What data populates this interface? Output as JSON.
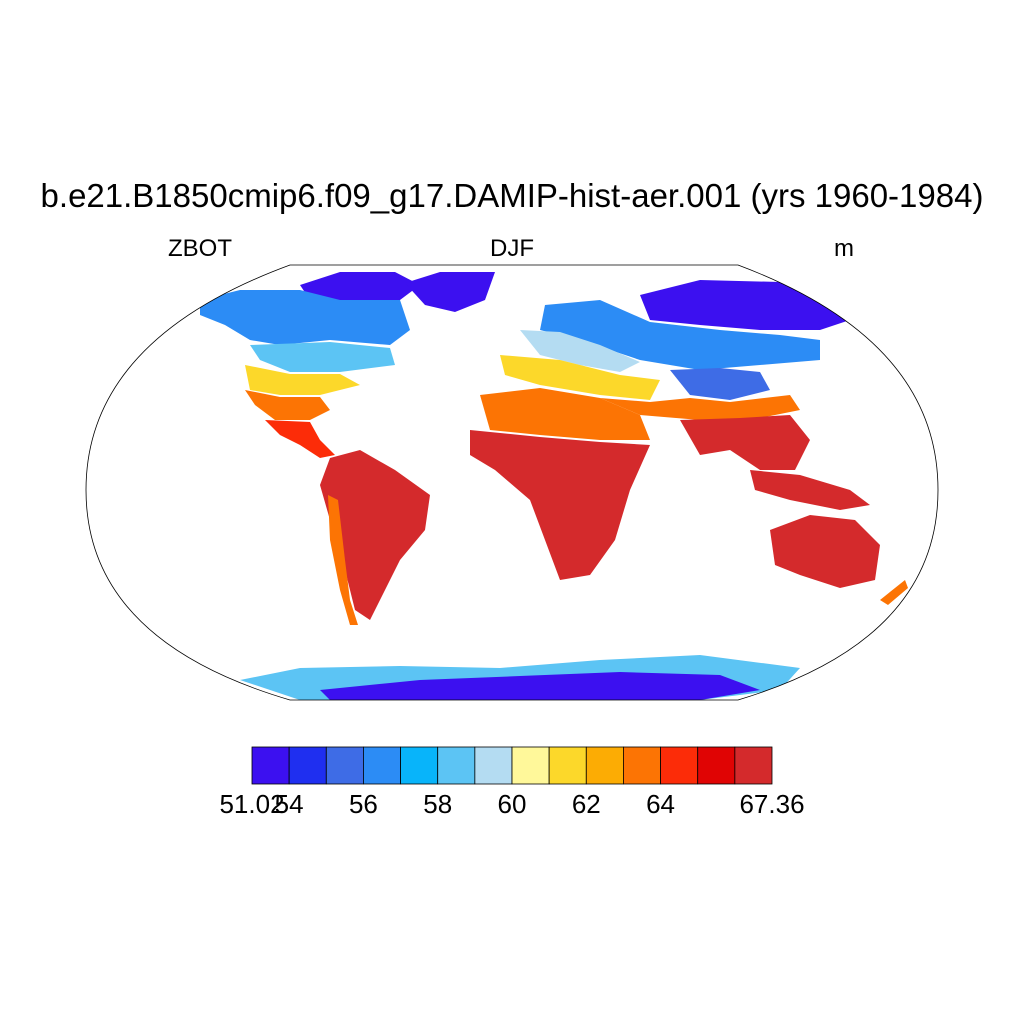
{
  "title": "b.e21.B1850cmip6.f09_g17.DAMIP-hist-aer.001 (yrs 1960-1984)",
  "subtitle_left": "ZBOT",
  "subtitle_center": "DJF",
  "subtitle_right": "m",
  "colorbar": {
    "colors": [
      "#3c10f0",
      "#1f2ff0",
      "#3e6ce6",
      "#2c8cf5",
      "#08b4fa",
      "#5cc4f4",
      "#b4dcf2",
      "#fff89a",
      "#fcd82a",
      "#fcac04",
      "#fc7404",
      "#fc2c08",
      "#e00404",
      "#d42a2c"
    ],
    "tick_labels": [
      "51.02",
      "54",
      "56",
      "58",
      "60",
      "62",
      "64",
      "67.36"
    ]
  },
  "map_legend_colors": {
    "land_outline": "#000000",
    "ocean": "#ffffff"
  }
}
